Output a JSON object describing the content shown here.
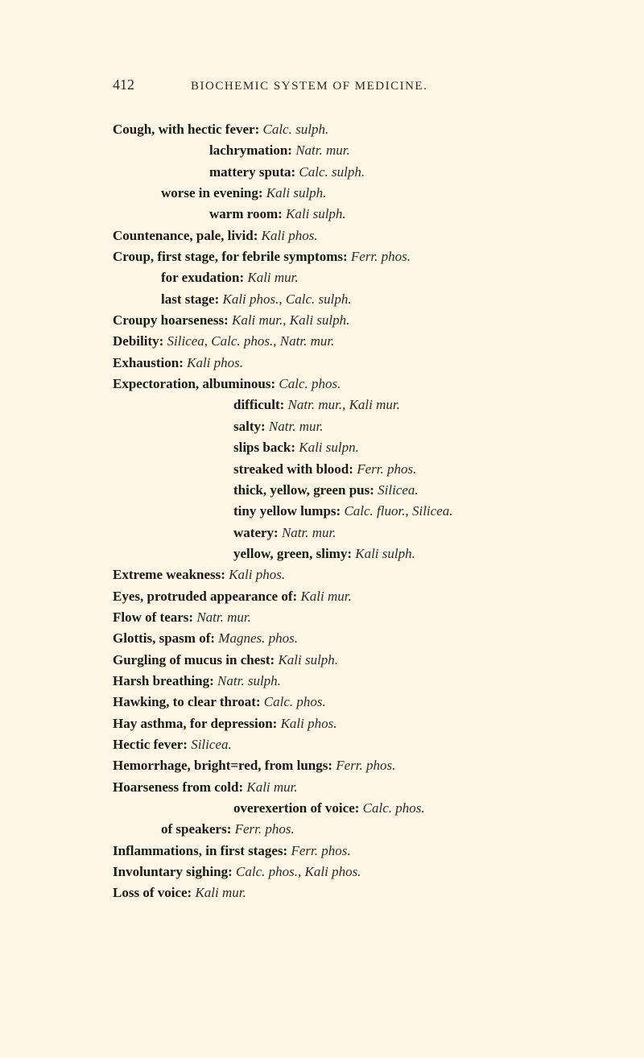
{
  "page_number": "412",
  "running_title": "BIOCHEMIC SYSTEM OF MEDICINE.",
  "lines": [
    {
      "indent": 0,
      "parts": [
        {
          "t": "Cough, with hectic fever: ",
          "cls": "bold"
        },
        {
          "t": "Calc. sulph.",
          "cls": "ital"
        }
      ]
    },
    {
      "indent": 2,
      "parts": [
        {
          "t": "lachrymation: ",
          "cls": "bold"
        },
        {
          "t": "Natr. mur.",
          "cls": "ital"
        }
      ]
    },
    {
      "indent": 2,
      "parts": [
        {
          "t": "mattery sputa: ",
          "cls": "bold"
        },
        {
          "t": "Calc. sulph.",
          "cls": "ital"
        }
      ]
    },
    {
      "indent": 1,
      "parts": [
        {
          "t": "worse in evening: ",
          "cls": "bold"
        },
        {
          "t": "Kali sulph.",
          "cls": "ital"
        }
      ]
    },
    {
      "indent": 2,
      "parts": [
        {
          "t": "warm room: ",
          "cls": "bold"
        },
        {
          "t": "Kali sulph.",
          "cls": "ital"
        }
      ]
    },
    {
      "indent": 0,
      "parts": [
        {
          "t": "Countenance, pale, livid: ",
          "cls": "bold"
        },
        {
          "t": "Kali phos.",
          "cls": "ital"
        }
      ]
    },
    {
      "indent": 0,
      "parts": [
        {
          "t": "Croup, first stage, for febrile symptoms: ",
          "cls": "bold"
        },
        {
          "t": "Ferr. phos.",
          "cls": "ital"
        }
      ]
    },
    {
      "indent": 1,
      "parts": [
        {
          "t": "for exudation: ",
          "cls": "bold"
        },
        {
          "t": "Kali mur.",
          "cls": "ital"
        }
      ]
    },
    {
      "indent": 1,
      "parts": [
        {
          "t": "last stage: ",
          "cls": "bold"
        },
        {
          "t": "Kali phos.",
          "cls": "ital"
        },
        {
          "t": ", ",
          "cls": ""
        },
        {
          "t": "Calc. sulph.",
          "cls": "ital"
        }
      ]
    },
    {
      "indent": 0,
      "parts": [
        {
          "t": "Croupy hoarseness: ",
          "cls": "bold"
        },
        {
          "t": "Kali mur.",
          "cls": "ital"
        },
        {
          "t": ", ",
          "cls": ""
        },
        {
          "t": "Kali sulph.",
          "cls": "ital"
        }
      ]
    },
    {
      "indent": 0,
      "parts": [
        {
          "t": "Debility: ",
          "cls": "bold"
        },
        {
          "t": "Silicea",
          "cls": "ital"
        },
        {
          "t": ", ",
          "cls": ""
        },
        {
          "t": "Calc. phos.",
          "cls": "ital"
        },
        {
          "t": ", ",
          "cls": ""
        },
        {
          "t": "Natr. mur.",
          "cls": "ital"
        }
      ]
    },
    {
      "indent": 0,
      "parts": [
        {
          "t": "Exhaustion: ",
          "cls": "bold"
        },
        {
          "t": "Kali phos.",
          "cls": "ital"
        }
      ]
    },
    {
      "indent": 0,
      "parts": [
        {
          "t": "Expectoration, albuminous: ",
          "cls": "bold"
        },
        {
          "t": "Calc. phos.",
          "cls": "ital"
        }
      ]
    },
    {
      "indent": 3,
      "parts": [
        {
          "t": "difficult: ",
          "cls": "bold"
        },
        {
          "t": "Natr. mur.",
          "cls": "ital"
        },
        {
          "t": ", ",
          "cls": ""
        },
        {
          "t": "Kali mur.",
          "cls": "ital"
        }
      ]
    },
    {
      "indent": 3,
      "parts": [
        {
          "t": "salty: ",
          "cls": "bold"
        },
        {
          "t": "Natr. mur.",
          "cls": "ital"
        }
      ]
    },
    {
      "indent": 3,
      "parts": [
        {
          "t": "slips back: ",
          "cls": "bold"
        },
        {
          "t": "Kali sulpn.",
          "cls": "ital"
        }
      ]
    },
    {
      "indent": 3,
      "parts": [
        {
          "t": "streaked with blood: ",
          "cls": "bold"
        },
        {
          "t": "Ferr. phos.",
          "cls": "ital"
        }
      ]
    },
    {
      "indent": 3,
      "parts": [
        {
          "t": "thick, yellow, green pus: ",
          "cls": "bold"
        },
        {
          "t": "Silicea.",
          "cls": "ital"
        }
      ]
    },
    {
      "indent": 3,
      "parts": [
        {
          "t": "tiny yellow lumps: ",
          "cls": "bold"
        },
        {
          "t": "Calc. fluor.",
          "cls": "ital"
        },
        {
          "t": ", ",
          "cls": ""
        },
        {
          "t": "Silicea.",
          "cls": "ital"
        }
      ]
    },
    {
      "indent": 3,
      "parts": [
        {
          "t": "watery: ",
          "cls": "bold"
        },
        {
          "t": "Natr. mur.",
          "cls": "ital"
        }
      ]
    },
    {
      "indent": 3,
      "parts": [
        {
          "t": "yellow, green, slimy: ",
          "cls": "bold"
        },
        {
          "t": "Kali sulph.",
          "cls": "ital"
        }
      ]
    },
    {
      "indent": 0,
      "parts": [
        {
          "t": "Extreme weakness: ",
          "cls": "bold"
        },
        {
          "t": "Kali phos.",
          "cls": "ital"
        }
      ]
    },
    {
      "indent": 0,
      "parts": [
        {
          "t": "Eyes, protruded appearance of: ",
          "cls": "bold"
        },
        {
          "t": "Kali mur.",
          "cls": "ital"
        }
      ]
    },
    {
      "indent": 0,
      "parts": [
        {
          "t": "Flow of tears: ",
          "cls": "bold"
        },
        {
          "t": "Natr. mur.",
          "cls": "ital"
        }
      ]
    },
    {
      "indent": 0,
      "parts": [
        {
          "t": "Glottis, spasm of: ",
          "cls": "bold"
        },
        {
          "t": "Magnes. phos.",
          "cls": "ital"
        }
      ]
    },
    {
      "indent": 0,
      "parts": [
        {
          "t": "Gurgling of mucus in chest: ",
          "cls": "bold"
        },
        {
          "t": "Kali sulph.",
          "cls": "ital"
        }
      ]
    },
    {
      "indent": 0,
      "parts": [
        {
          "t": "Harsh breathing: ",
          "cls": "bold"
        },
        {
          "t": "Natr. sulph.",
          "cls": "ital"
        }
      ]
    },
    {
      "indent": 0,
      "parts": [
        {
          "t": "Hawking, to clear throat: ",
          "cls": "bold"
        },
        {
          "t": "Calc. phos.",
          "cls": "ital"
        }
      ]
    },
    {
      "indent": 0,
      "parts": [
        {
          "t": "Hay asthma, for depression: ",
          "cls": "bold"
        },
        {
          "t": "Kali phos.",
          "cls": "ital"
        }
      ]
    },
    {
      "indent": 0,
      "parts": [
        {
          "t": "Hectic fever: ",
          "cls": "bold"
        },
        {
          "t": "Silicea.",
          "cls": "ital"
        }
      ]
    },
    {
      "indent": 0,
      "parts": [
        {
          "t": "Hemorrhage, bright=red, from lungs: ",
          "cls": "bold"
        },
        {
          "t": "Ferr. phos.",
          "cls": "ital"
        }
      ]
    },
    {
      "indent": 0,
      "parts": [
        {
          "t": "Hoarseness from cold: ",
          "cls": "bold"
        },
        {
          "t": "Kali mur.",
          "cls": "ital"
        }
      ]
    },
    {
      "indent": 3,
      "parts": [
        {
          "t": "overexertion of voice: ",
          "cls": "bold"
        },
        {
          "t": "Calc. phos.",
          "cls": "ital"
        }
      ]
    },
    {
      "indent": 1,
      "parts": [
        {
          "t": "of speakers: ",
          "cls": "bold"
        },
        {
          "t": "Ferr. phos.",
          "cls": "ital"
        }
      ]
    },
    {
      "indent": 0,
      "parts": [
        {
          "t": "Inflammations, in first stages: ",
          "cls": "bold"
        },
        {
          "t": "Ferr. phos.",
          "cls": "ital"
        }
      ]
    },
    {
      "indent": 0,
      "parts": [
        {
          "t": "Involuntary sighing: ",
          "cls": "bold"
        },
        {
          "t": "Calc. phos.",
          "cls": "ital"
        },
        {
          "t": ", ",
          "cls": ""
        },
        {
          "t": "Kali phos.",
          "cls": "ital"
        }
      ]
    },
    {
      "indent": 0,
      "parts": [
        {
          "t": "Loss of voice: ",
          "cls": "bold"
        },
        {
          "t": "Kali mur.",
          "cls": "ital"
        }
      ]
    }
  ]
}
